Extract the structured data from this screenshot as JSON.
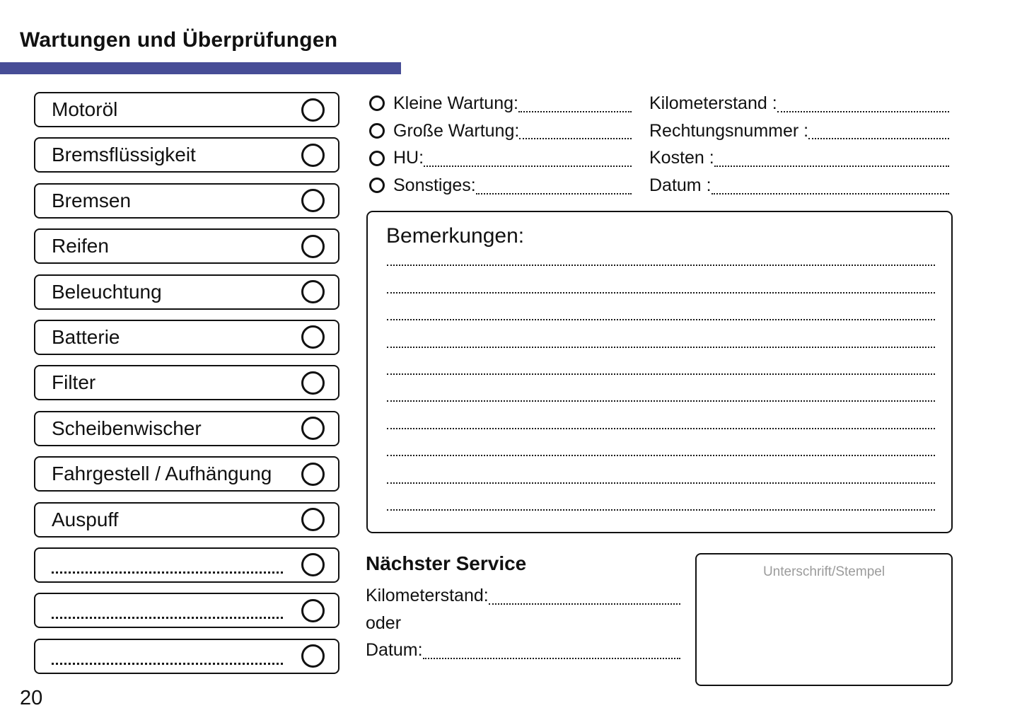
{
  "page": {
    "title": "Wartungen und Überprüfungen",
    "number": "20",
    "accent_color": "#474D96"
  },
  "checklist": {
    "items": [
      {
        "label": "Motoröl"
      },
      {
        "label": "Bremsflüssigkeit"
      },
      {
        "label": "Bremsen"
      },
      {
        "label": "Reifen"
      },
      {
        "label": "Beleuchtung"
      },
      {
        "label": "Batterie"
      },
      {
        "label": "Filter"
      },
      {
        "label": "Scheibenwischer"
      },
      {
        "label": "Fahrgestell / Aufhängung"
      },
      {
        "label": "Auspuff"
      },
      {
        "label": ""
      },
      {
        "label": ""
      },
      {
        "label": ""
      }
    ]
  },
  "service_type": {
    "options": [
      {
        "label": "Kleine Wartung:"
      },
      {
        "label": "Große Wartung:"
      },
      {
        "label": "HU:"
      },
      {
        "label": "Sonstiges:"
      }
    ]
  },
  "record_fields": {
    "fields": [
      {
        "label": "Kilometerstand :"
      },
      {
        "label": "Rechtungsnummer :"
      },
      {
        "label": "Kosten :"
      },
      {
        "label": "Datum :"
      }
    ]
  },
  "notes": {
    "title": "Bemerkungen:"
  },
  "next_service": {
    "title": "Nächster Service",
    "kilometerstand_label": "Kilometerstand:",
    "oder_label": "oder",
    "datum_label": "Datum:"
  },
  "signature": {
    "label": "Unterschrift/Stempel"
  }
}
